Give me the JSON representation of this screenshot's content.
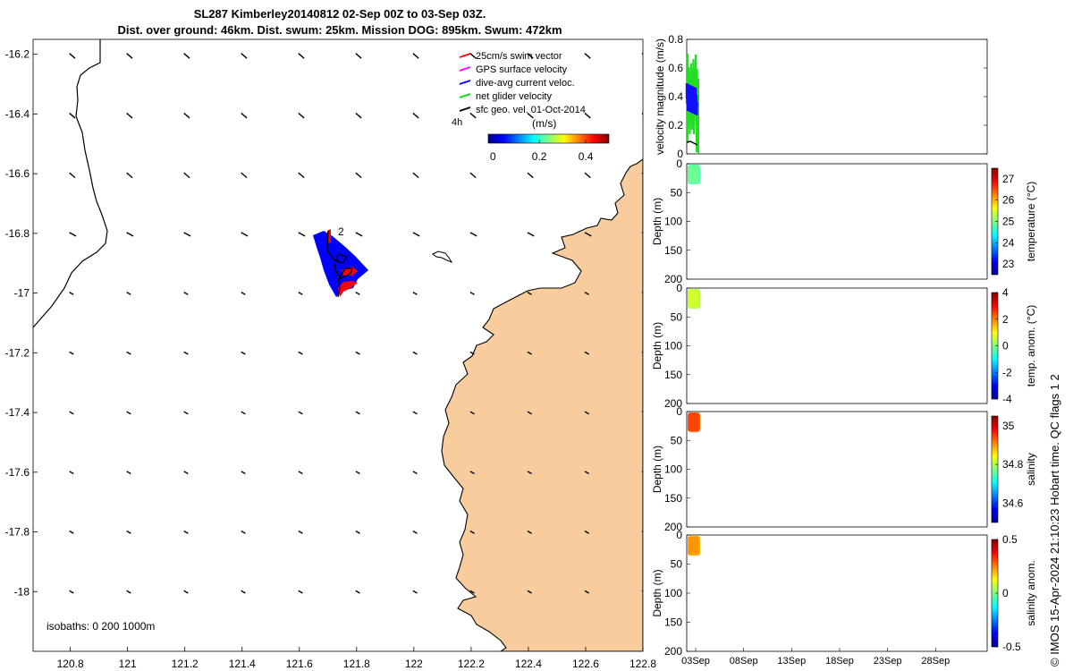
{
  "header": {
    "title_line1": "SL287 Kimberley20140812 02-Sep 00Z to 03-Sep 03Z.",
    "title_line2": "Dist. over ground: 46km. Dist. swum: 25km. Mission DOG: 895km. Swum: 472km"
  },
  "credit": "© IMOS 15-Apr-2024 21:10:23 Hobart time. QC flags 1  2",
  "colors": {
    "land": "#f9cc9e",
    "track_blue": "#0000ff",
    "track_red": "#ff0000",
    "net_green": "#22dd22",
    "dive_blue": "#1010ff"
  },
  "chart_data": [
    {
      "type": "map",
      "x_ticks": [
        "120.8",
        "121",
        "121.2",
        "121.4",
        "121.6",
        "121.8",
        "122",
        "122.2",
        "122.4",
        "122.6",
        "122.8"
      ],
      "x_values": [
        120.8,
        121.0,
        121.2,
        121.4,
        121.6,
        121.8,
        122.0,
        122.2,
        122.4,
        122.6,
        122.8
      ],
      "y_ticks": [
        "-16.2",
        "-16.4",
        "-16.6",
        "-16.8",
        "-17",
        "-17.2",
        "-17.4",
        "-17.6",
        "-17.8",
        "-18"
      ],
      "y_values": [
        -16.2,
        -16.4,
        -16.6,
        -16.8,
        -17.0,
        -17.2,
        -17.4,
        -17.6,
        -17.8,
        -18.0
      ],
      "xlim": [
        120.67,
        122.8
      ],
      "ylim": [
        -18.2,
        -16.15
      ],
      "legend": [
        {
          "label": "25cm/s swim vector",
          "color": "#ff0000"
        },
        {
          "label": "GPS surface velocity",
          "color": "#ff00ff"
        },
        {
          "label": "dive-avg current veloc.",
          "color": "#0000ff"
        },
        {
          "label": "net glider velocity",
          "color": "#00dd00"
        },
        {
          "label": "sfc geo. vel. 01-Oct-2014",
          "color": "#000000"
        }
      ],
      "legend_extra": "4h",
      "colorbar": {
        "label": "(m/s)",
        "ticks": [
          "0",
          "0.2",
          "0.4"
        ],
        "range": [
          -0.02,
          0.5
        ]
      },
      "annotation": "2",
      "isobaths_label": "isobaths: 0   200  1000m",
      "vector_grid": {
        "x": [
          120.8,
          121.0,
          121.2,
          121.4,
          121.6,
          121.8,
          122.0,
          122.2,
          122.4,
          122.6,
          122.8
        ],
        "y": [
          -16.2,
          -16.4,
          -16.6,
          -16.8,
          -17.0,
          -17.2,
          -17.4,
          -17.6,
          -17.8,
          -18.0
        ]
      }
    },
    {
      "type": "line",
      "ylabel": "velocity magnitude (m/s)",
      "ylim": [
        0,
        0.8
      ],
      "y_ticks": [
        "0",
        "0.2",
        "0.4",
        "0.6",
        "0.8"
      ],
      "y_values": [
        0,
        0.2,
        0.4,
        0.6,
        0.8
      ]
    },
    {
      "type": "scatter",
      "ylabel": "Depth (m)",
      "colorbar_label": "temperature (°C)",
      "colorbar_ticks": [
        "23",
        "24",
        "25",
        "26",
        "27"
      ],
      "colorbar_range": [
        22.5,
        27.5
      ],
      "depth_ticks": [
        "0",
        "50",
        "100",
        "150",
        "200"
      ],
      "colormap_sample": 0.45
    },
    {
      "type": "scatter",
      "ylabel": "Depth (m)",
      "colorbar_label": "temp. anom. (°C)",
      "colorbar_ticks": [
        "-4",
        "-2",
        "0",
        "2",
        "4"
      ],
      "colorbar_range": [
        -4,
        4
      ],
      "depth_ticks": [
        "0",
        "50",
        "100",
        "150",
        "200"
      ],
      "colormap_sample": 0.55
    },
    {
      "type": "scatter",
      "ylabel": "Depth (m)",
      "colorbar_label": "salinity",
      "colorbar_ticks": [
        "34.6",
        "34.8",
        "35"
      ],
      "colorbar_range": [
        34.5,
        35.05
      ],
      "depth_ticks": [
        "0",
        "50",
        "100",
        "150",
        "200"
      ],
      "colormap_sample": 0.78
    },
    {
      "type": "scatter",
      "ylabel": "Depth (m)",
      "colorbar_label": "salinity anom.",
      "colorbar_ticks": [
        "-0.5",
        "0",
        "0.5"
      ],
      "colorbar_range": [
        -0.5,
        0.5
      ],
      "depth_ticks": [
        "0",
        "50",
        "100",
        "150",
        "200"
      ],
      "x_ticks": [
        "03Sep",
        "08Sep",
        "13Sep",
        "18Sep",
        "23Sep",
        "28Sep"
      ],
      "colormap_sample": 0.7
    }
  ]
}
